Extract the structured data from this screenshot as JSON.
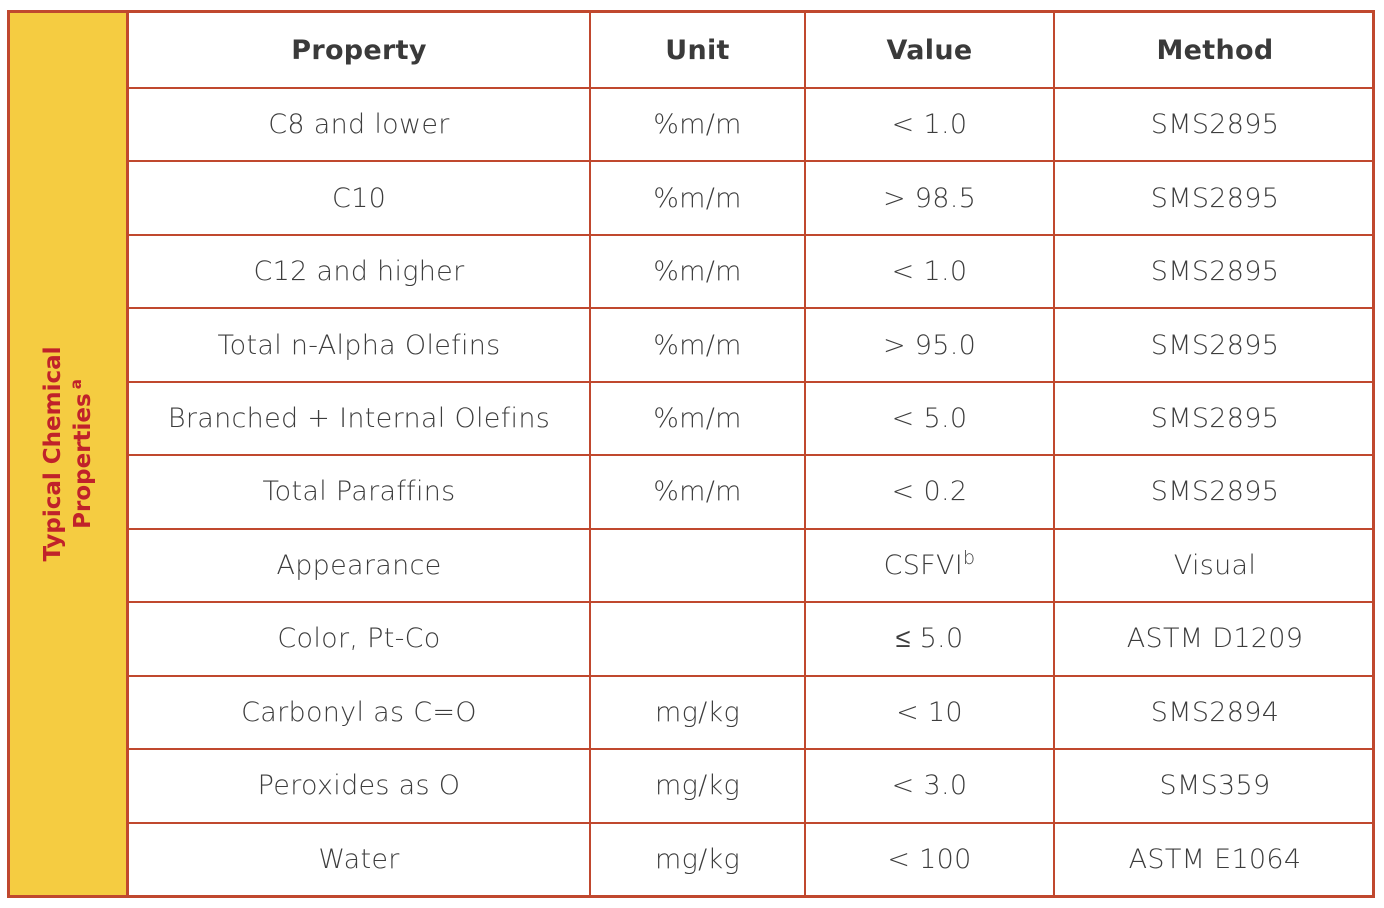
{
  "side_label": {
    "line1": "Typical Chemical",
    "line2": "Properties",
    "marker": "a"
  },
  "colors": {
    "border": "#c0482e",
    "side_bg": "#f5cc41",
    "side_text": "#c0222a",
    "text": "#3d3d3d"
  },
  "table": {
    "headers": {
      "property": "Property",
      "unit": "Unit",
      "value": "Value",
      "method": "Method"
    },
    "rows": [
      {
        "property": "C8 and lower",
        "unit": "%m/m",
        "value": "< 1.0",
        "value_sup": "",
        "method": "SMS2895"
      },
      {
        "property": "C10",
        "unit": "%m/m",
        "value": "> 98.5",
        "value_sup": "",
        "method": "SMS2895"
      },
      {
        "property": "C12 and higher",
        "unit": "%m/m",
        "value": "< 1.0",
        "value_sup": "",
        "method": "SMS2895"
      },
      {
        "property": "Total n-Alpha Olefins",
        "unit": "%m/m",
        "value": "> 95.0",
        "value_sup": "",
        "method": "SMS2895"
      },
      {
        "property": "Branched + Internal Olefins",
        "unit": "%m/m",
        "value": "< 5.0",
        "value_sup": "",
        "method": "SMS2895"
      },
      {
        "property": "Total Paraffins",
        "unit": "%m/m",
        "value": "< 0.2",
        "value_sup": "",
        "method": "SMS2895"
      },
      {
        "property": "Appearance",
        "unit": "",
        "value": "CSFVI",
        "value_sup": "b",
        "method": "Visual"
      },
      {
        "property": "Color, Pt-Co",
        "unit": "",
        "value": "≤ 5.0",
        "value_sup": "",
        "method": "ASTM D1209"
      },
      {
        "property": "Carbonyl as C=O",
        "unit": "mg/kg",
        "value": "< 10",
        "value_sup": "",
        "method": "SMS2894"
      },
      {
        "property": "Peroxides as O",
        "unit": "mg/kg",
        "value": "< 3.0",
        "value_sup": "",
        "method": "SMS359"
      },
      {
        "property": "Water",
        "unit": "mg/kg",
        "value": "< 100",
        "value_sup": "",
        "method": "ASTM E1064"
      }
    ]
  }
}
